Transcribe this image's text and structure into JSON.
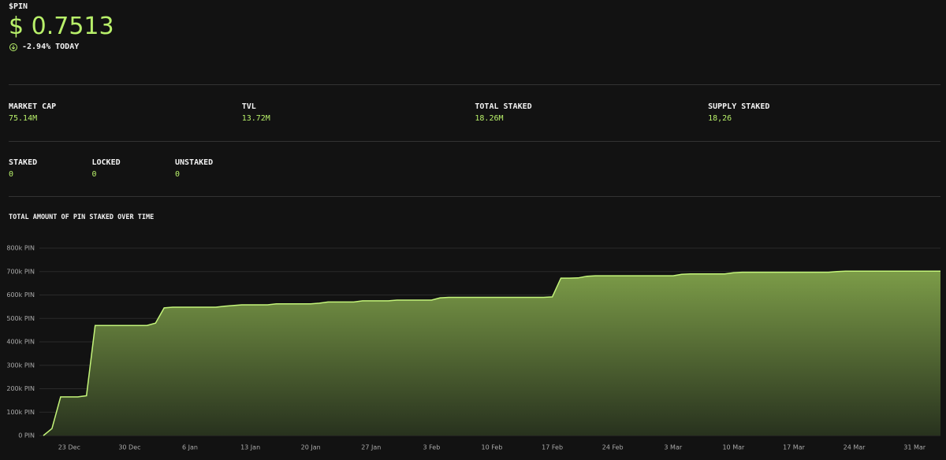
{
  "header": {
    "ticker": "$PIN",
    "price": "$ 0.7513",
    "change": "-2.94% TODAY"
  },
  "stats": [
    {
      "label": "MARKET CAP",
      "value": "75.14M"
    },
    {
      "label": "TVL",
      "value": "13.72M"
    },
    {
      "label": "TOTAL STAKED",
      "value": "18.26M"
    },
    {
      "label": "SUPPLY STAKED",
      "value": "18,26"
    }
  ],
  "staking": [
    {
      "label": "STAKED",
      "value": "0"
    },
    {
      "label": "LOCKED",
      "value": "0"
    },
    {
      "label": "UNSTAKED",
      "value": "0"
    }
  ],
  "chart_data": {
    "type": "area",
    "title": "TOTAL AMOUNT OF PIN STAKED OVER TIME",
    "color": "#c4f57a",
    "categories": [
      null,
      null,
      null,
      "23 Dec",
      null,
      null,
      null,
      null,
      null,
      null,
      "30 Dec",
      null,
      null,
      null,
      null,
      null,
      null,
      "6 Jan",
      null,
      null,
      null,
      null,
      null,
      null,
      "13 Jan",
      null,
      null,
      null,
      null,
      null,
      null,
      "20 Jan",
      null,
      null,
      null,
      null,
      null,
      null,
      "27 Jan",
      null,
      null,
      null,
      null,
      null,
      null,
      "3 Feb",
      null,
      null,
      null,
      null,
      null,
      null,
      "10 Feb",
      null,
      null,
      null,
      null,
      null,
      null,
      "17 Feb",
      null,
      null,
      null,
      null,
      null,
      null,
      "24 Feb",
      null,
      null,
      null,
      null,
      null,
      null,
      "3 Mar",
      null,
      null,
      null,
      null,
      null,
      null,
      "10 Mar",
      null,
      null,
      null,
      null,
      null,
      null,
      "17 Mar",
      null,
      null,
      null,
      null,
      null,
      null,
      "24 Mar",
      null,
      null,
      null,
      null,
      null,
      null,
      "31 Mar",
      null,
      null,
      null
    ],
    "values": [
      0,
      30000,
      165000,
      165000,
      165000,
      170000,
      470000,
      470000,
      470000,
      470000,
      470000,
      470000,
      470000,
      480000,
      545000,
      548000,
      548000,
      548000,
      548000,
      548000,
      548000,
      552000,
      555000,
      558000,
      558000,
      558000,
      558000,
      562000,
      562000,
      562000,
      562000,
      562000,
      565000,
      570000,
      570000,
      570000,
      570000,
      575000,
      575000,
      575000,
      575000,
      578000,
      578000,
      578000,
      578000,
      578000,
      588000,
      590000,
      590000,
      590000,
      590000,
      590000,
      590000,
      590000,
      590000,
      590000,
      590000,
      590000,
      590000,
      592000,
      672000,
      672000,
      673000,
      680000,
      682000,
      682000,
      682000,
      682000,
      682000,
      682000,
      682000,
      682000,
      682000,
      682000,
      688000,
      690000,
      690000,
      690000,
      690000,
      690000,
      695000,
      697000,
      697000,
      697000,
      697000,
      697000,
      697000,
      697000,
      697000,
      697000,
      697000,
      697000,
      700000,
      702000,
      702000,
      702000,
      702000,
      702000,
      702000,
      702000,
      702000,
      702000,
      702000,
      702000,
      702000
    ],
    "ylim": [
      0,
      800000
    ],
    "yticks": [
      {
        "value": 0,
        "label": "0 PIN"
      },
      {
        "value": 100000,
        "label": "100k PIN"
      },
      {
        "value": 200000,
        "label": "200k PIN"
      },
      {
        "value": 300000,
        "label": "300k PIN"
      },
      {
        "value": 400000,
        "label": "400k PIN"
      },
      {
        "value": 500000,
        "label": "500k PIN"
      },
      {
        "value": 600000,
        "label": "600k PIN"
      },
      {
        "value": 700000,
        "label": "700k PIN"
      },
      {
        "value": 800000,
        "label": "800k PIN"
      }
    ],
    "grid": true
  }
}
